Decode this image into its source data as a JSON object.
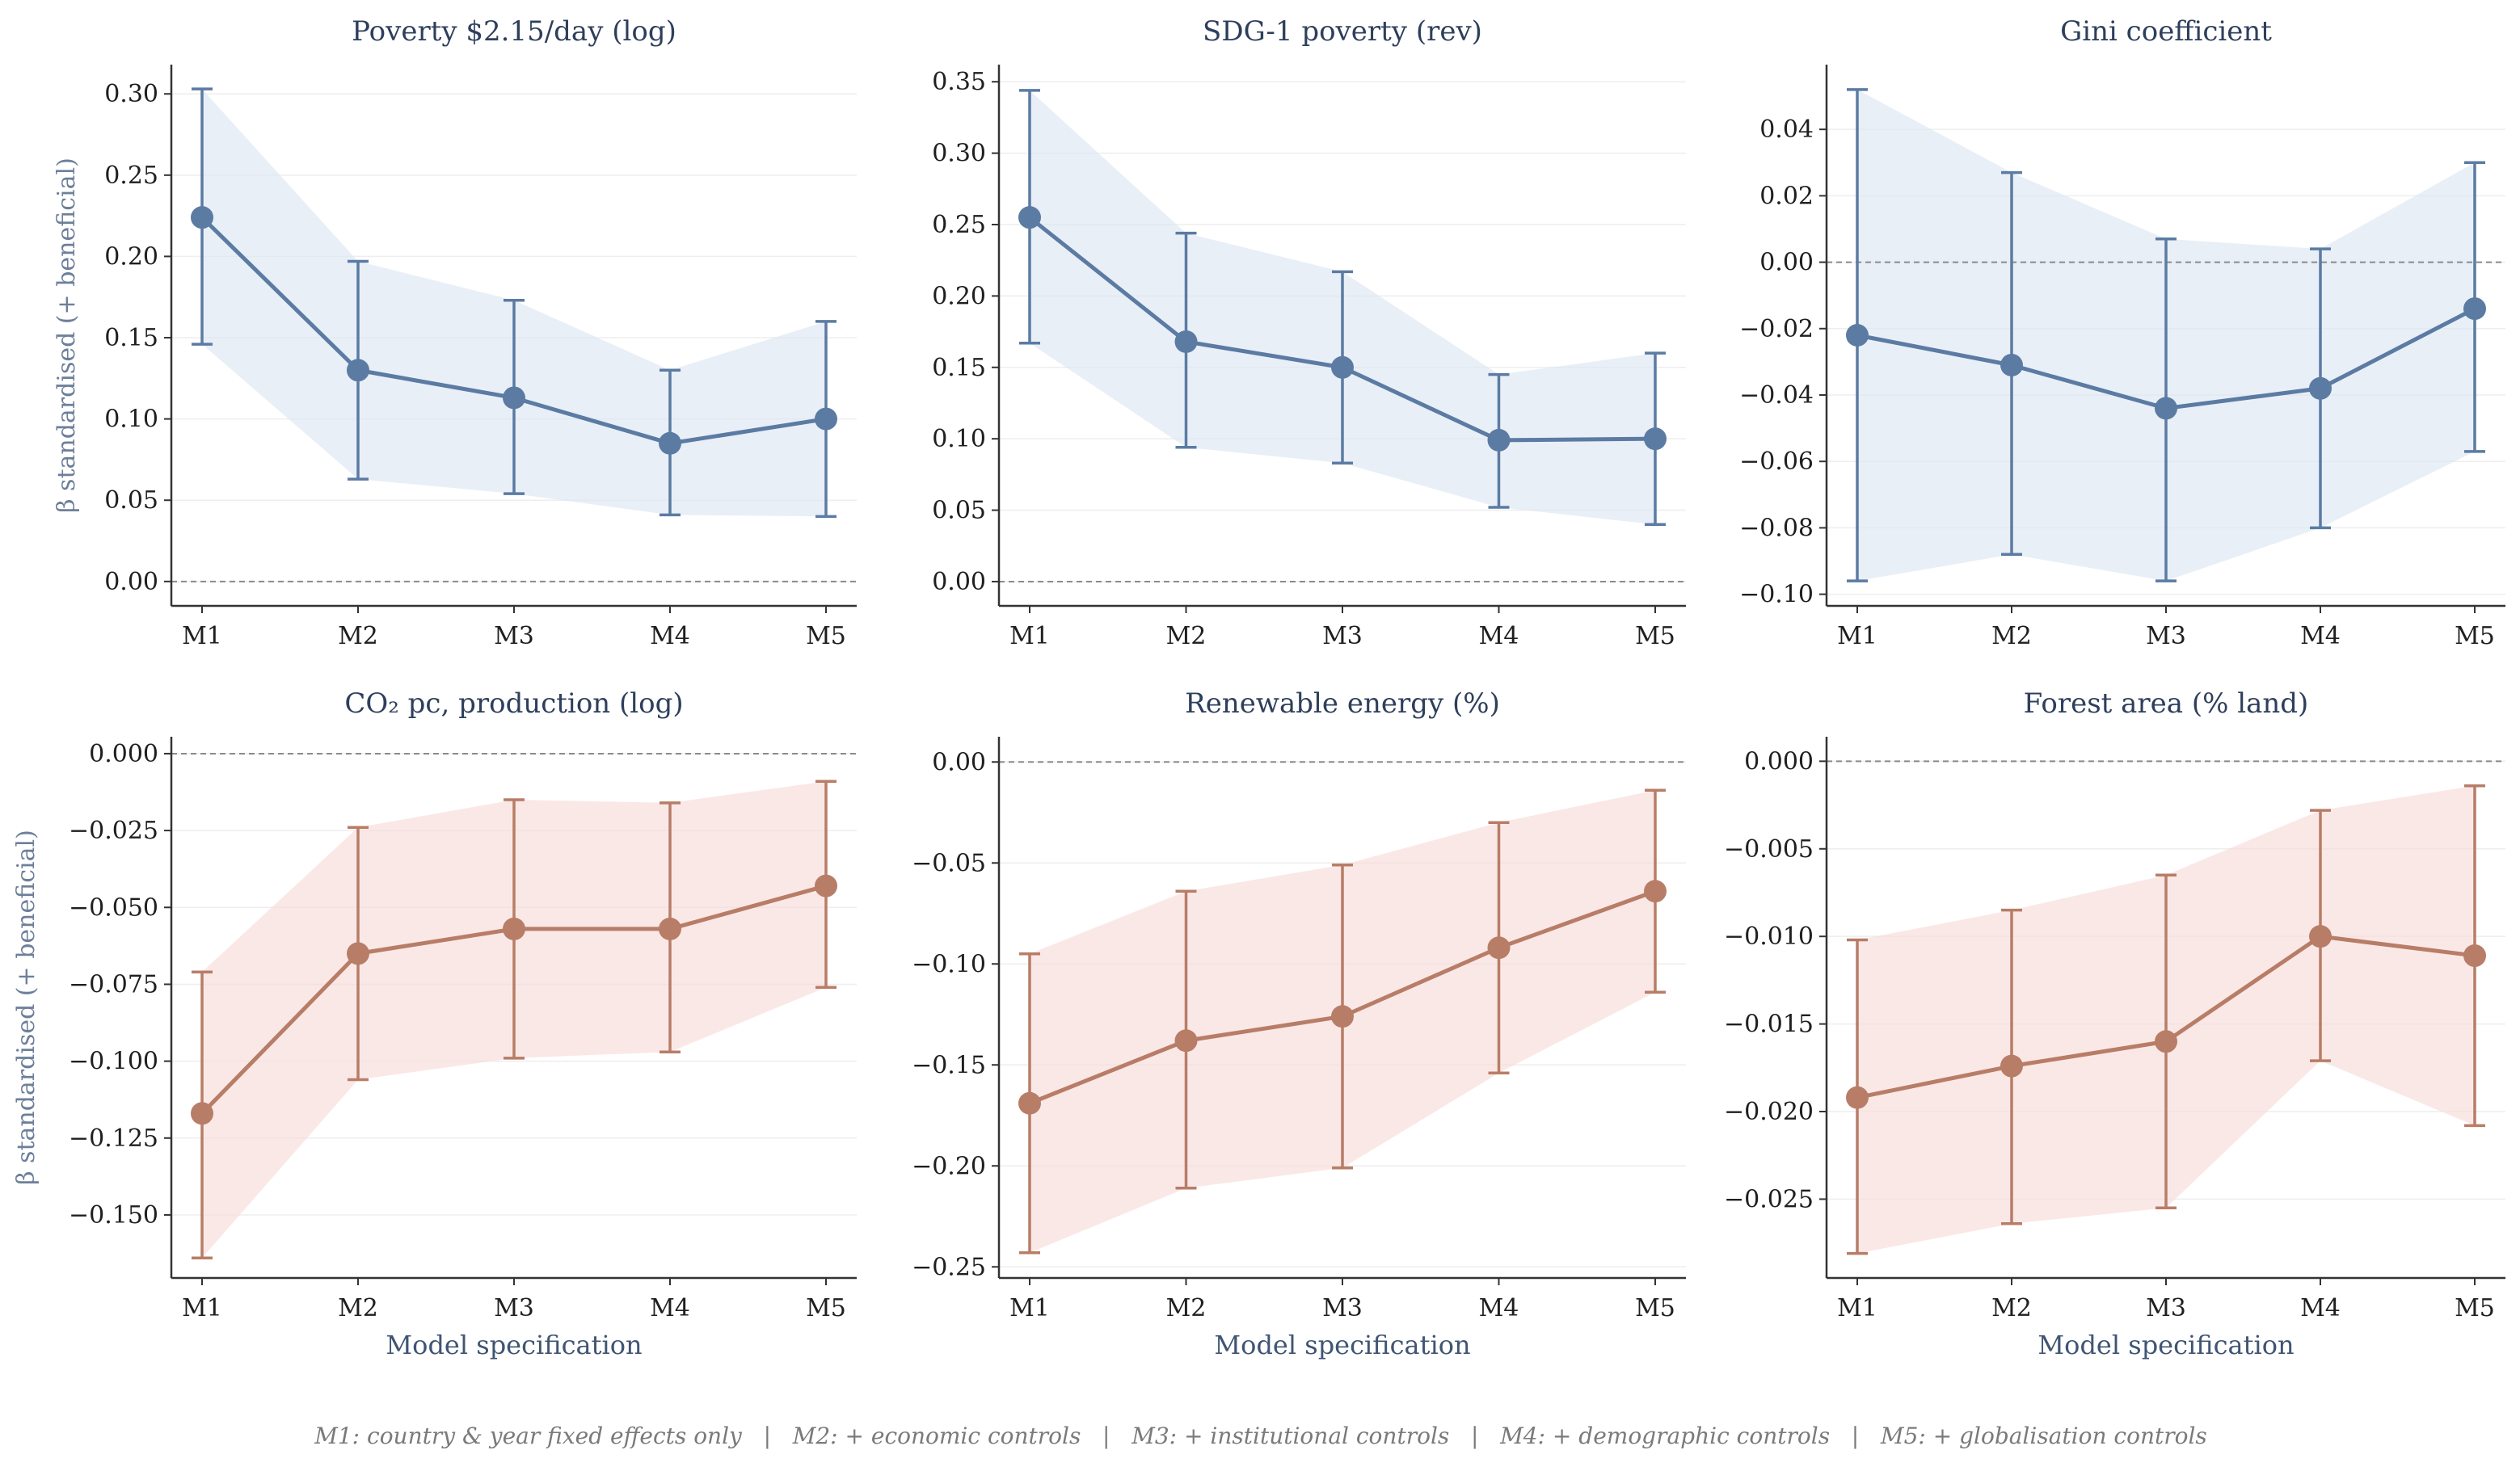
{
  "chart_data": [
    {
      "type": "line",
      "title": "Poverty $2.15/day (log)",
      "categories": [
        "M1",
        "M2",
        "M3",
        "M4",
        "M5"
      ],
      "series": [
        {
          "values": [
            0.224,
            0.13,
            0.113,
            0.085,
            0.1
          ],
          "ci_low": [
            0.146,
            0.063,
            0.054,
            0.041,
            0.04
          ],
          "ci_high": [
            0.303,
            0.197,
            0.173,
            0.13,
            0.16
          ]
        }
      ],
      "ylim": [
        -0.015,
        0.318
      ],
      "yticks": [
        0.0,
        0.05,
        0.1,
        0.15,
        0.2,
        0.25,
        0.3
      ],
      "ytick_labels": [
        "0.00",
        "0.05",
        "0.10",
        "0.15",
        "0.20",
        "0.25",
        "0.30"
      ],
      "ylabel": "β standardised (+ beneficial)",
      "xlabel": "",
      "reference_line": 0,
      "color": "#5b7ba3",
      "band_color": "#dde7f2",
      "grid": true
    },
    {
      "type": "line",
      "title": "SDG-1 poverty (rev)",
      "categories": [
        "M1",
        "M2",
        "M3",
        "M4",
        "M5"
      ],
      "series": [
        {
          "values": [
            0.255,
            0.168,
            0.15,
            0.099,
            0.1
          ],
          "ci_low": [
            0.167,
            0.094,
            0.083,
            0.052,
            0.04
          ],
          "ci_high": [
            0.344,
            0.244,
            0.217,
            0.145,
            0.16
          ]
        }
      ],
      "ylim": [
        -0.017,
        0.362
      ],
      "yticks": [
        0.0,
        0.05,
        0.1,
        0.15,
        0.2,
        0.25,
        0.3,
        0.35
      ],
      "ytick_labels": [
        "0.00",
        "0.05",
        "0.10",
        "0.15",
        "0.20",
        "0.25",
        "0.30",
        "0.35"
      ],
      "ylabel": "",
      "xlabel": "",
      "reference_line": 0,
      "color": "#5b7ba3",
      "band_color": "#dde7f2",
      "grid": true
    },
    {
      "type": "line",
      "title": "Gini coefficient",
      "categories": [
        "M1",
        "M2",
        "M3",
        "M4",
        "M5"
      ],
      "series": [
        {
          "values": [
            -0.022,
            -0.031,
            -0.044,
            -0.038,
            -0.014
          ],
          "ci_low": [
            -0.096,
            -0.088,
            -0.096,
            -0.08,
            -0.057
          ],
          "ci_high": [
            0.052,
            0.027,
            0.007,
            0.004,
            0.03
          ]
        }
      ],
      "ylim": [
        -0.1035,
        0.0595
      ],
      "yticks": [
        -0.1,
        -0.08,
        -0.06,
        -0.04,
        -0.02,
        0.0,
        0.02,
        0.04
      ],
      "ytick_labels": [
        "−0.10",
        "−0.08",
        "−0.06",
        "−0.04",
        "−0.02",
        "0.00",
        "0.02",
        "0.04"
      ],
      "ylabel": "",
      "xlabel": "",
      "reference_line": 0,
      "color": "#5b7ba3",
      "band_color": "#dde7f2",
      "grid": true
    },
    {
      "type": "line",
      "title": "CO₂ pc, production (log)",
      "categories": [
        "M1",
        "M2",
        "M3",
        "M4",
        "M5"
      ],
      "series": [
        {
          "values": [
            -0.117,
            -0.065,
            -0.057,
            -0.057,
            -0.043
          ],
          "ci_low": [
            -0.164,
            -0.106,
            -0.099,
            -0.097,
            -0.076
          ],
          "ci_high": [
            -0.071,
            -0.024,
            -0.015,
            -0.016,
            -0.009
          ]
        }
      ],
      "ylim": [
        -0.1705,
        0.0055
      ],
      "yticks": [
        -0.15,
        -0.125,
        -0.1,
        -0.075,
        -0.05,
        -0.025,
        0.0
      ],
      "ytick_labels": [
        "−0.150",
        "−0.125",
        "−0.100",
        "−0.075",
        "−0.050",
        "−0.025",
        "0.000"
      ],
      "ylabel": "β standardised (+ beneficial)",
      "xlabel": "Model specification",
      "reference_line": 0,
      "color": "#b87d67",
      "band_color": "#f7dcda",
      "grid": true
    },
    {
      "type": "line",
      "title": "Renewable energy (%)",
      "categories": [
        "M1",
        "M2",
        "M3",
        "M4",
        "M5"
      ],
      "series": [
        {
          "values": [
            -0.169,
            -0.138,
            -0.126,
            -0.092,
            -0.064
          ],
          "ci_low": [
            -0.243,
            -0.211,
            -0.201,
            -0.154,
            -0.114
          ],
          "ci_high": [
            -0.095,
            -0.064,
            -0.051,
            -0.03,
            -0.014
          ]
        }
      ],
      "ylim": [
        -0.2555,
        0.0125
      ],
      "yticks": [
        -0.25,
        -0.2,
        -0.15,
        -0.1,
        -0.05,
        0.0
      ],
      "ytick_labels": [
        "−0.25",
        "−0.20",
        "−0.15",
        "−0.10",
        "−0.05",
        "0.00"
      ],
      "ylabel": "",
      "xlabel": "Model specification",
      "reference_line": 0,
      "color": "#b87d67",
      "band_color": "#f7dcda",
      "grid": true
    },
    {
      "type": "line",
      "title": "Forest area (% land)",
      "categories": [
        "M1",
        "M2",
        "M3",
        "M4",
        "M5"
      ],
      "series": [
        {
          "values": [
            -0.0192,
            -0.0174,
            -0.016,
            -0.01,
            -0.0111
          ],
          "ci_low": [
            -0.0281,
            -0.0264,
            -0.0255,
            -0.0171,
            -0.0208
          ],
          "ci_high": [
            -0.0102,
            -0.0085,
            -0.0065,
            -0.0028,
            -0.0014
          ]
        }
      ],
      "ylim": [
        -0.0295,
        0.0014
      ],
      "yticks": [
        -0.025,
        -0.02,
        -0.015,
        -0.01,
        -0.005,
        0.0
      ],
      "ytick_labels": [
        "−0.025",
        "−0.020",
        "−0.015",
        "−0.010",
        "−0.005",
        "0.000"
      ],
      "ylabel": "",
      "xlabel": "Model specification",
      "reference_line": 0,
      "color": "#b87d67",
      "band_color": "#f7dcda",
      "grid": true
    }
  ],
  "footnote": "M1: country & year fixed effects only   |   M2: + economic controls   |   M3: + institutional controls   |   M4: + demographic controls   |   M5: + globalisation controls"
}
